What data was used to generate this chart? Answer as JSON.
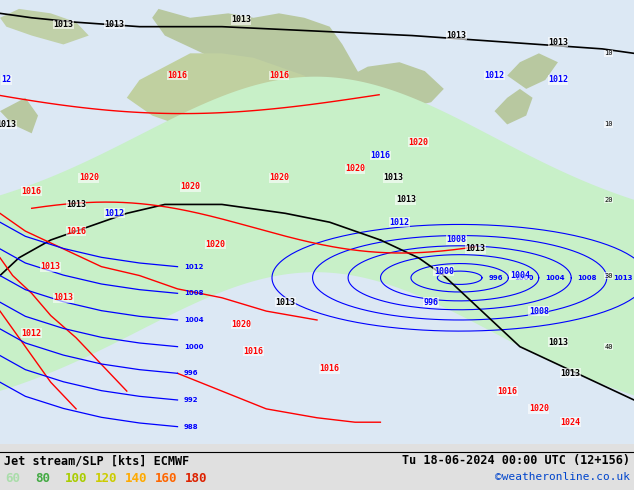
{
  "title_left": "Jet stream/SLP [kts] ECMWF",
  "title_right": "Tu 18-06-2024 00:00 UTC (12+156)",
  "credit": "©weatheronline.co.uk",
  "legend_values": [
    60,
    80,
    100,
    120,
    140,
    160,
    180
  ],
  "legend_text_colors": [
    "#aaddaa",
    "#44aa44",
    "#aacc00",
    "#cccc00",
    "#ffaa00",
    "#ff6600",
    "#dd2200"
  ],
  "bg_color": "#e8e8e8",
  "land_color": "#c8d8b0",
  "ocean_color": "#dce8f0",
  "jet_colors": [
    [
      "#c8f0c8",
      0.22
    ],
    [
      "#90d890",
      0.18
    ],
    [
      "#44bb44",
      0.14
    ],
    [
      "#22aa22",
      0.11
    ],
    [
      "#aad000",
      0.085
    ],
    [
      "#dddd00",
      0.065
    ],
    [
      "#ffcc00",
      0.048
    ],
    [
      "#ffaa00",
      0.032
    ],
    [
      "#ff6600",
      0.018
    ],
    [
      "#ee2200",
      0.008
    ]
  ],
  "figsize": [
    6.34,
    4.9
  ],
  "dpi": 100
}
